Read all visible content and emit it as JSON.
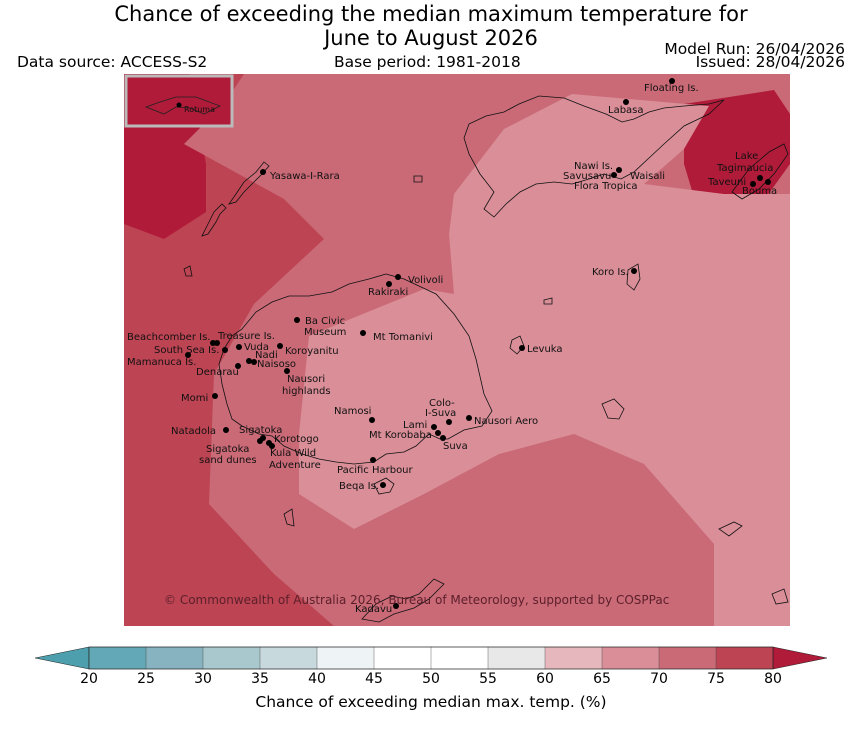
{
  "title_line1": "Chance of exceeding the median maximum temperature for",
  "title_line2": "June to August 2026",
  "data_source": "Data source: ACCESS-S2",
  "base_period": "Base period: 1981-2018",
  "model_run": "Model Run: 26/04/2026",
  "issued": "Issued: 28/04/2026",
  "inset_label": "Rotuma",
  "copyright": "© Commonwealth of Australia 2026, Bureau of Meteorology, supported by COSPPac",
  "places": {
    "floating": "Floating Is.",
    "labasa": "Labasa",
    "yasawa": "Yasawa-I-Rara",
    "nawi": "Nawi Is.",
    "savusavu": "Savusavu",
    "waisali": "Waisali",
    "flora": "Flora Tropica",
    "lake": "Lake",
    "tagimaucia": "Tagimaucia",
    "taveuni": "Taveuni",
    "bouma": "Bouma",
    "volivoli": "Volivoli",
    "rakiraki": "Rakiraki",
    "koro": "Koro Is.",
    "beachcomber": "Beachcomber Is.",
    "treasure": "Treasure Is.",
    "south_sea": "South Sea Is.",
    "vuda": "Vuda",
    "mamanuca": "Mamanuca Is.",
    "nadi": "Nadi",
    "naisoso": "Naisoso",
    "denarau": "Denarau",
    "ba_civic": "Ba Civic",
    "museum": "Museum",
    "koroyanitu": "Koroyanitu",
    "tomanivi": "Mt Tomanivi",
    "levuka": "Levuka",
    "nausori_h1": "Nausori",
    "nausori_h2": "highlands",
    "momi": "Momi",
    "namosi": "Namosi",
    "colo1": "Colo-",
    "colo2": "I-Suva",
    "lami": "Lami",
    "nausori_aero": "Nausori Aero",
    "korobaba": "Mt Korobaba",
    "suva": "Suva",
    "natadola": "Natadola",
    "sigatoka": "Sigatoka",
    "korotogo": "Korotogo",
    "sigatoka_dunes1": "Sigatoka",
    "sigatoka_dunes2": "sand dunes",
    "kula1": "Kula Wild",
    "kula2": "Adventure",
    "pacific_harbour": "Pacific Harbour",
    "beqa": "Beqa Is.",
    "kadavu": "Kadavu"
  },
  "colorbar": {
    "title": "Chance of exceeding median max. temp. (%)",
    "ticks": [
      "20",
      "25",
      "30",
      "35",
      "40",
      "45",
      "50",
      "55",
      "60",
      "65",
      "70",
      "75",
      "80"
    ],
    "colors": [
      "#62a8b6",
      "#86b3bf",
      "#a8c8cd",
      "#c7d9dd",
      "#eef3f5",
      "#ffffff",
      "#ffffff",
      "#e8e8e8",
      "#e6b8bd",
      "#d98e98",
      "#ca6a77",
      "#bd4453"
    ],
    "under_color": "#4e9fae",
    "over_color": "#b01b39"
  },
  "map_colors": {
    "band_75_80": "#bd4453",
    "band_70_75": "#ca6a77",
    "band_65_70": "#d98e98",
    "band_over_80": "#b01b39"
  }
}
